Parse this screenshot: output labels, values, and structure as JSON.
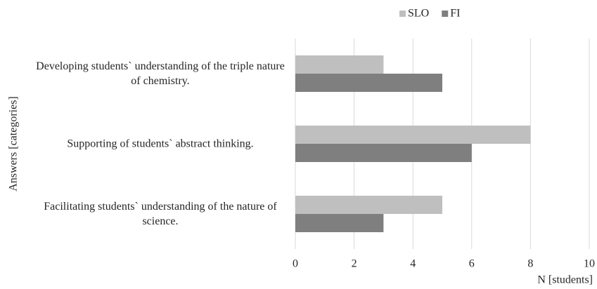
{
  "chart_data": {
    "type": "bar",
    "orientation": "horizontal",
    "categories": [
      "Developing students` understanding of the triple nature of chemistry.",
      "Supporting of students` abstract thinking.",
      "Facilitating students` understanding of the nature of science."
    ],
    "series": [
      {
        "name": "SLO",
        "color": "#bfbfbf",
        "values": [
          3,
          8,
          5
        ]
      },
      {
        "name": "FI",
        "color": "#7f7f7f",
        "values": [
          5,
          6,
          3
        ]
      }
    ],
    "xlim": [
      0,
      10
    ],
    "xticks": [
      0,
      2,
      4,
      6,
      8,
      10
    ],
    "xlabel": "N [students]",
    "ylabel": "Answers [categories]",
    "grid": true,
    "legend": "top"
  }
}
